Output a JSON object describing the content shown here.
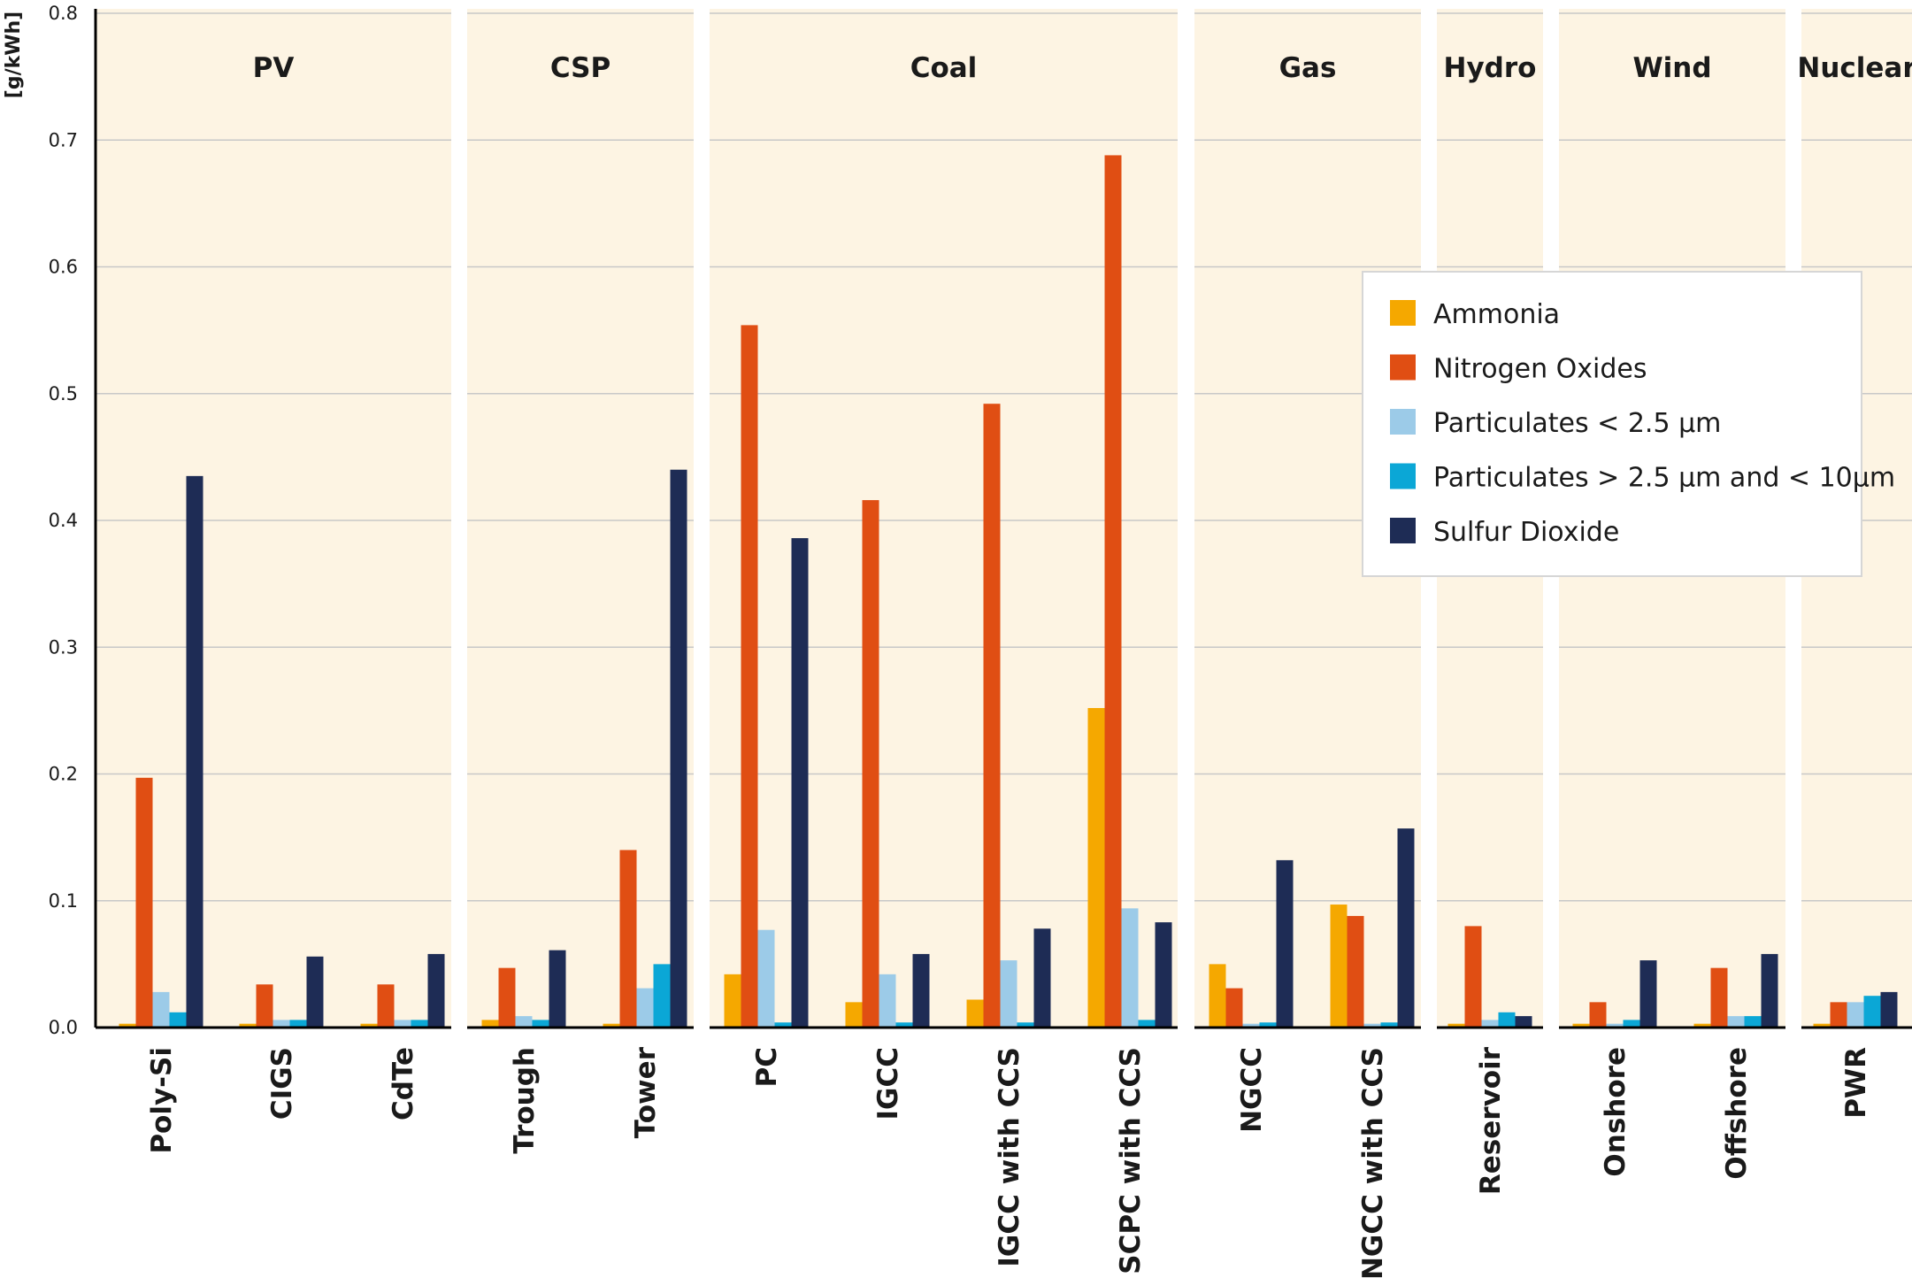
{
  "chart_data": {
    "type": "bar",
    "ylabel": "[g/kWh]",
    "ylim": [
      0,
      0.8
    ],
    "yticks": [
      "0.0",
      "0.1",
      "0.2",
      "0.3",
      "0.4",
      "0.5",
      "0.6",
      "0.7",
      "0.8"
    ],
    "grid": true,
    "legend_position": "upper-right (inside plot)",
    "colors": {
      "panel_background": "#fdf4e3",
      "grid": "#c8c8c8",
      "axis": "#000000"
    },
    "series": [
      {
        "name": "Ammonia",
        "color": "#f5a800"
      },
      {
        "name": "Nitrogen Oxides",
        "color": "#e04e13"
      },
      {
        "name": "Particulates < 2.5 µm",
        "color": "#9ccbe8"
      },
      {
        "name": "Particulates > 2.5 µm and < 10µm",
        "color": "#0ba7d6"
      },
      {
        "name": "Sulfur Dioxide",
        "color": "#1e2c55"
      }
    ],
    "groups": [
      {
        "name": "PV",
        "categories": [
          {
            "name": "Poly-Si",
            "values": [
              0.003,
              0.197,
              0.028,
              0.012,
              0.435
            ]
          },
          {
            "name": "CIGS",
            "values": [
              0.003,
              0.034,
              0.006,
              0.006,
              0.056
            ]
          },
          {
            "name": "CdTe",
            "values": [
              0.003,
              0.034,
              0.006,
              0.006,
              0.058
            ]
          }
        ]
      },
      {
        "name": "CSP",
        "categories": [
          {
            "name": "Trough",
            "values": [
              0.006,
              0.047,
              0.009,
              0.006,
              0.061
            ]
          },
          {
            "name": "Tower",
            "values": [
              0.003,
              0.14,
              0.031,
              0.05,
              0.44
            ]
          }
        ]
      },
      {
        "name": "Coal",
        "categories": [
          {
            "name": "PC",
            "values": [
              0.042,
              0.554,
              0.077,
              0.004,
              0.386
            ]
          },
          {
            "name": "IGCC",
            "values": [
              0.02,
              0.416,
              0.042,
              0.004,
              0.058
            ]
          },
          {
            "name": "IGCC with CCS",
            "values": [
              0.022,
              0.492,
              0.053,
              0.004,
              0.078
            ]
          },
          {
            "name": "SCPC with CCS",
            "values": [
              0.252,
              0.688,
              0.094,
              0.006,
              0.083
            ]
          }
        ]
      },
      {
        "name": "Gas",
        "categories": [
          {
            "name": "NGCC",
            "values": [
              0.05,
              0.031,
              0.003,
              0.004,
              0.132
            ]
          },
          {
            "name": "NGCC with CCS",
            "values": [
              0.097,
              0.088,
              0.003,
              0.004,
              0.157
            ]
          }
        ]
      },
      {
        "name": "Hydro",
        "categories": [
          {
            "name": "Reservoir",
            "values": [
              0.003,
              0.08,
              0.006,
              0.012,
              0.009
            ]
          }
        ]
      },
      {
        "name": "Wind",
        "categories": [
          {
            "name": "Onshore",
            "values": [
              0.003,
              0.02,
              0.003,
              0.006,
              0.053
            ]
          },
          {
            "name": "Offshore",
            "values": [
              0.003,
              0.047,
              0.009,
              0.009,
              0.058
            ]
          }
        ]
      },
      {
        "name": "Nuclear",
        "categories": [
          {
            "name": "PWR",
            "values": [
              0.003,
              0.02,
              0.02,
              0.025,
              0.028
            ]
          }
        ]
      }
    ]
  }
}
